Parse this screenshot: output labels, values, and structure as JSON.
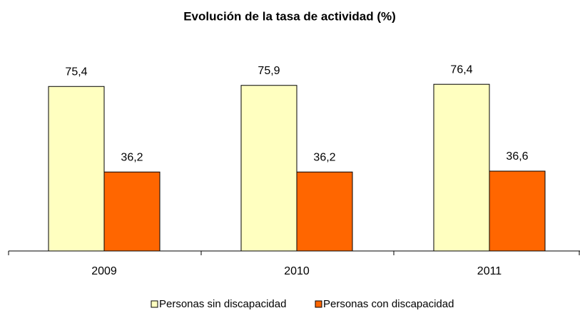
{
  "chart_data": {
    "type": "bar",
    "title": "Evolución de la tasa de actividad (%)",
    "categories": [
      "2009",
      "2010",
      "2011"
    ],
    "series": [
      {
        "name": "Personas sin discapacidad",
        "color": "#ffffc0",
        "values": [
          75.4,
          75.9,
          76.4
        ],
        "value_labels": [
          "75,4",
          "75,9",
          "76,4"
        ]
      },
      {
        "name": "Personas con discapacidad",
        "color": "#ff6600",
        "values": [
          36.2,
          36.2,
          36.6
        ],
        "value_labels": [
          "36,2",
          "36,2",
          "36,6"
        ]
      }
    ],
    "ylim": [
      0,
      100
    ],
    "grid": false
  }
}
